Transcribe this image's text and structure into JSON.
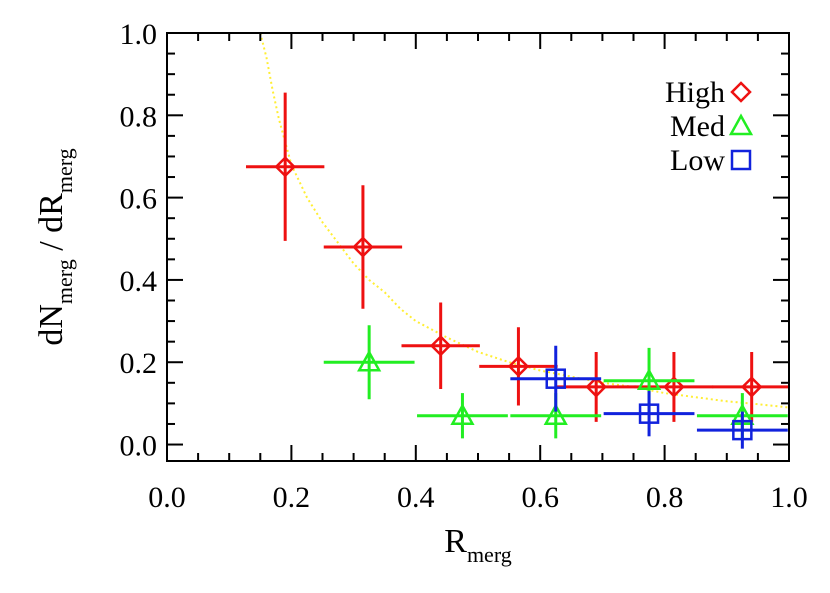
{
  "chart_data": {
    "type": "scatter",
    "title": "",
    "xlabel": {
      "main": "R",
      "sub": "merg"
    },
    "ylabel": {
      "part1_main": "dN",
      "part1_sub": "merg",
      "separator": " / ",
      "part2_main": "dR",
      "part2_sub": "merg"
    },
    "xlim": [
      0.0,
      1.0
    ],
    "ylim": [
      -0.04,
      1.0
    ],
    "x_ticks": [
      0.0,
      0.2,
      0.4,
      0.6,
      0.8,
      1.0
    ],
    "x_tick_labels": [
      "0.0",
      "0.2",
      "0.4",
      "0.6",
      "0.8",
      "1.0"
    ],
    "y_ticks": [
      0.0,
      0.2,
      0.4,
      0.6,
      0.8,
      1.0
    ],
    "y_tick_labels": [
      "0.0",
      "0.2",
      "0.4",
      "0.6",
      "0.8",
      "1.0"
    ],
    "x_minor_step": 0.05,
    "y_minor_step": 0.05,
    "grid": false,
    "legend_position": "top-right",
    "series": [
      {
        "name": "High",
        "marker": "diamond",
        "color": "#ee1111",
        "points": [
          {
            "x": 0.19,
            "y": 0.675,
            "xerr": 0.063,
            "yerr": 0.18
          },
          {
            "x": 0.315,
            "y": 0.48,
            "xerr": 0.063,
            "yerr": 0.15
          },
          {
            "x": 0.44,
            "y": 0.24,
            "xerr": 0.063,
            "yerr": 0.105
          },
          {
            "x": 0.565,
            "y": 0.19,
            "xerr": 0.063,
            "yerr": 0.095
          },
          {
            "x": 0.69,
            "y": 0.14,
            "xerr": 0.063,
            "yerr": 0.085
          },
          {
            "x": 0.815,
            "y": 0.14,
            "xerr": 0.063,
            "yerr": 0.085
          },
          {
            "x": 0.94,
            "y": 0.14,
            "xerr": 0.063,
            "yerr": 0.085
          }
        ]
      },
      {
        "name": "Med",
        "marker": "triangle",
        "color": "#22ee22",
        "points": [
          {
            "x": 0.325,
            "y": 0.2,
            "xerr": 0.073,
            "yerr": 0.09
          },
          {
            "x": 0.475,
            "y": 0.07,
            "xerr": 0.073,
            "yerr": 0.055
          },
          {
            "x": 0.625,
            "y": 0.07,
            "xerr": 0.073,
            "yerr": 0.055
          },
          {
            "x": 0.775,
            "y": 0.155,
            "xerr": 0.073,
            "yerr": 0.08
          },
          {
            "x": 0.925,
            "y": 0.07,
            "xerr": 0.073,
            "yerr": 0.055
          }
        ]
      },
      {
        "name": "Low",
        "marker": "square",
        "color": "#1122dd",
        "points": [
          {
            "x": 0.625,
            "y": 0.16,
            "xerr": 0.073,
            "yerr": 0.08
          },
          {
            "x": 0.775,
            "y": 0.075,
            "xerr": 0.073,
            "yerr": 0.055
          },
          {
            "x": 0.925,
            "y": 0.035,
            "xerr": 0.073,
            "yerr": 0.045
          }
        ]
      }
    ],
    "fit_curve": {
      "style": "dotted",
      "color": "#ffee33",
      "points": [
        [
          0.15,
          1.0
        ],
        [
          0.16,
          0.94
        ],
        [
          0.17,
          0.86
        ],
        [
          0.18,
          0.79
        ],
        [
          0.2,
          0.68
        ],
        [
          0.225,
          0.6
        ],
        [
          0.25,
          0.54
        ],
        [
          0.275,
          0.49
        ],
        [
          0.3,
          0.44
        ],
        [
          0.325,
          0.4
        ],
        [
          0.35,
          0.37
        ],
        [
          0.375,
          0.33
        ],
        [
          0.4,
          0.3
        ],
        [
          0.45,
          0.26
        ],
        [
          0.5,
          0.225
        ],
        [
          0.55,
          0.2
        ],
        [
          0.6,
          0.18
        ],
        [
          0.65,
          0.165
        ],
        [
          0.7,
          0.15
        ],
        [
          0.75,
          0.14
        ],
        [
          0.8,
          0.125
        ],
        [
          0.85,
          0.115
        ],
        [
          0.9,
          0.105
        ],
        [
          0.95,
          0.098
        ],
        [
          1.0,
          0.09
        ]
      ]
    }
  }
}
